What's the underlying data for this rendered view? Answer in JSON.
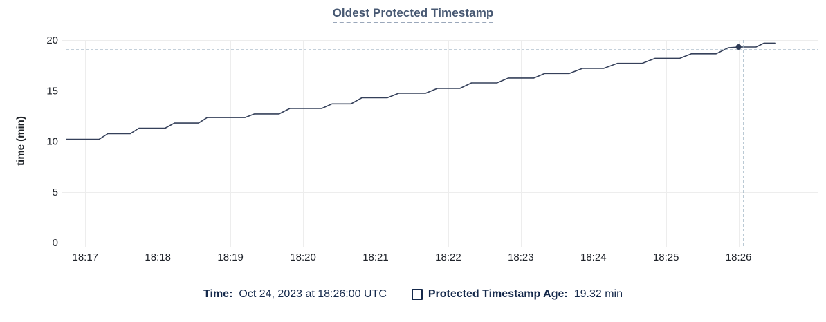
{
  "title": "Oldest Protected Timestamp",
  "ylabel": "time (min)",
  "legend": {
    "time_label": "Time:",
    "time_value": "Oct 24, 2023 at 18:26:00 UTC",
    "series_label": "Protected Timestamp Age:",
    "series_value": "19.32 min"
  },
  "colors": {
    "title": "#475872",
    "line": "#35405a",
    "dot": "#2d3a55",
    "crosshair": "#a0b5c3",
    "grid": "#ededed",
    "axis_line": "#d9d9d9",
    "tick_text": "#20242b",
    "legend_text": "#15294b"
  },
  "chart_data": {
    "type": "line",
    "title": "Oldest Protected Timestamp",
    "xlabel": "",
    "ylabel": "time (min)",
    "grid": true,
    "legend_position": "bottom",
    "ylim": [
      0,
      20
    ],
    "y_ticks": [
      0,
      5,
      10,
      15,
      20
    ],
    "x_domain_minutes_past_1800": [
      16.74,
      27.09
    ],
    "x_ticks": [
      {
        "t": 17,
        "label": "18:17"
      },
      {
        "t": 18,
        "label": "18:18"
      },
      {
        "t": 19,
        "label": "18:19"
      },
      {
        "t": 20,
        "label": "18:20"
      },
      {
        "t": 21,
        "label": "18:21"
      },
      {
        "t": 22,
        "label": "18:22"
      },
      {
        "t": 23,
        "label": "18:23"
      },
      {
        "t": 24,
        "label": "18:24"
      },
      {
        "t": 25,
        "label": "18:25"
      },
      {
        "t": 26,
        "label": "18:26"
      }
    ],
    "series": [
      {
        "name": "Protected Timestamp Age",
        "unit": "min",
        "points": [
          [
            16.74,
            10.2
          ],
          [
            17.19,
            10.2
          ],
          [
            17.31,
            10.75
          ],
          [
            17.62,
            10.75
          ],
          [
            17.74,
            11.3
          ],
          [
            18.1,
            11.3
          ],
          [
            18.23,
            11.8
          ],
          [
            18.56,
            11.8
          ],
          [
            18.68,
            12.35
          ],
          [
            19.2,
            12.35
          ],
          [
            19.33,
            12.7
          ],
          [
            19.67,
            12.7
          ],
          [
            19.82,
            13.25
          ],
          [
            20.26,
            13.25
          ],
          [
            20.4,
            13.7
          ],
          [
            20.66,
            13.7
          ],
          [
            20.81,
            14.3
          ],
          [
            21.16,
            14.3
          ],
          [
            21.32,
            14.75
          ],
          [
            21.69,
            14.75
          ],
          [
            21.85,
            15.22
          ],
          [
            22.16,
            15.22
          ],
          [
            22.32,
            15.77
          ],
          [
            22.67,
            15.77
          ],
          [
            22.83,
            16.25
          ],
          [
            23.18,
            16.25
          ],
          [
            23.33,
            16.7
          ],
          [
            23.67,
            16.7
          ],
          [
            23.85,
            17.2
          ],
          [
            24.14,
            17.2
          ],
          [
            24.33,
            17.7
          ],
          [
            24.67,
            17.7
          ],
          [
            24.85,
            18.2
          ],
          [
            25.19,
            18.2
          ],
          [
            25.35,
            18.65
          ],
          [
            25.69,
            18.65
          ],
          [
            25.86,
            19.25
          ],
          [
            26.0,
            19.32
          ],
          [
            26.24,
            19.32
          ],
          [
            26.35,
            19.7
          ],
          [
            26.51,
            19.7
          ]
        ]
      }
    ],
    "hover": {
      "time": "18:26:00",
      "point_t": 26.0,
      "point_value_min": 19.32,
      "crosshair_t": 26.07,
      "crosshair_value_min": 19.04
    }
  }
}
